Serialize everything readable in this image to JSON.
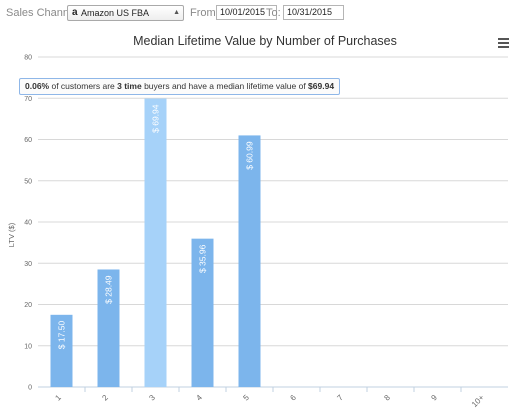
{
  "toolbar": {
    "channel_label": "Sales Channel:",
    "channel_icon": "amazon-logo-icon",
    "channel_value": "Amazon US FBA",
    "from_label": "From:",
    "from_value": "10/01/2015",
    "to_label": "To:",
    "to_value": "10/31/2015"
  },
  "tooltip": {
    "pct": "0.06%",
    "t1": " of customers are ",
    "purchases": "3 time",
    "t2": " buyers and have a median lifetime value of ",
    "value": "$69.94"
  },
  "colors": {
    "bar": "#7cb5ec",
    "bar_hover": "#a6d2f9",
    "tooltip_border": "#8fb7e8"
  },
  "chart_data": {
    "type": "bar",
    "title": "Median Lifetime Value by Number of Purchases",
    "xlabel": "",
    "ylabel": "LTV ($)",
    "ylim": [
      0,
      80
    ],
    "yticks": [
      0,
      10,
      20,
      30,
      40,
      50,
      60,
      70,
      80
    ],
    "grid": true,
    "categories": [
      "1",
      "2",
      "3",
      "4",
      "5",
      "6",
      "7",
      "8",
      "9",
      "10+"
    ],
    "values": [
      17.5,
      28.49,
      69.94,
      35.96,
      60.99,
      null,
      null,
      null,
      null,
      null
    ],
    "data_labels": [
      "$ 17.50",
      "$ 28.49",
      "$ 69.94",
      "$ 35.96",
      "$ 60.99",
      "",
      "",
      "",
      "",
      ""
    ],
    "highlighted_category": "3"
  }
}
